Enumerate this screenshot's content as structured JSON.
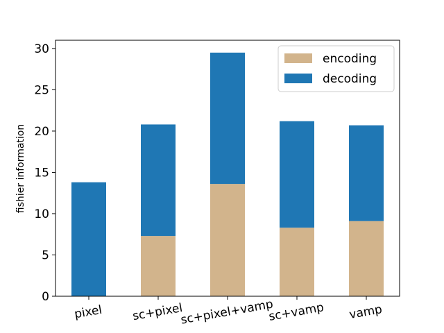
{
  "chart_data": {
    "type": "bar",
    "stacked": true,
    "title": "",
    "xlabel": "",
    "ylabel": "fishier information",
    "ylim": [
      0,
      31
    ],
    "yticks": [
      0,
      5,
      10,
      15,
      20,
      25,
      30
    ],
    "categories": [
      "pixel",
      "sc+pixel",
      "sc+pixel+vamp",
      "sc+vamp",
      "vamp"
    ],
    "series": [
      {
        "name": "encoding",
        "color": "#d2b48c",
        "values": [
          0.0,
          7.3,
          13.6,
          8.3,
          9.1
        ]
      },
      {
        "name": "decoding",
        "color": "#1f77b4",
        "values": [
          13.8,
          13.5,
          15.9,
          12.9,
          11.6
        ]
      }
    ],
    "legend_position": "top-right",
    "grid": false
  }
}
